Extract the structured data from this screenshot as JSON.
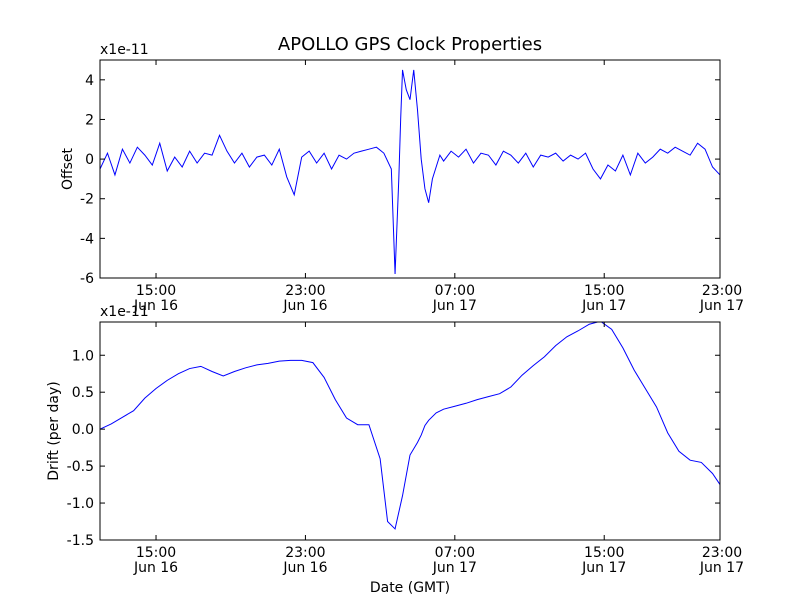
{
  "chart_data": [
    {
      "type": "line",
      "title": "APOLLO GPS Clock Properties",
      "xlabel": "",
      "ylabel": "Offset",
      "y_multiplier": "x1e-11",
      "ylim": [
        -6,
        5
      ],
      "yticks": [
        -6,
        -4,
        -2,
        0,
        2,
        4
      ],
      "ytick_labels": [
        "-6",
        "-4",
        "-2",
        "0",
        "2",
        "4"
      ],
      "xlim": [
        0,
        16.6
      ],
      "xticks": [
        {
          "x": 1.5,
          "time": "15:00",
          "date": "Jun 16"
        },
        {
          "x": 5.5,
          "time": "23:00",
          "date": "Jun 16"
        },
        {
          "x": 9.5,
          "time": "07:00",
          "date": "Jun 17"
        },
        {
          "x": 13.5,
          "time": "15:00",
          "date": "Jun 17"
        },
        {
          "x": 17.5,
          "time": "23:00",
          "date": "Jun 17"
        }
      ],
      "grid": false,
      "line_color": "#0000ff",
      "series": [
        {
          "x": [
            0,
            0.2,
            0.4,
            0.6,
            0.8,
            1.0,
            1.2,
            1.4,
            1.6,
            1.8,
            2.0,
            2.2,
            2.4,
            2.6,
            2.8,
            3.0,
            3.2,
            3.4,
            3.6,
            3.8,
            4.0,
            4.2,
            4.4,
            4.6,
            4.8,
            5.0,
            5.2,
            5.4,
            5.6,
            5.8,
            6.0,
            6.2,
            6.4,
            6.6,
            6.8,
            7.0,
            7.2,
            7.4,
            7.6,
            7.8,
            7.9,
            8.0,
            8.05,
            8.1,
            8.2,
            8.3,
            8.4,
            8.5,
            8.6,
            8.7,
            8.8,
            8.9,
            9.0,
            9.1,
            9.2,
            9.4,
            9.6,
            9.8,
            10.0,
            10.2,
            10.4,
            10.6,
            10.8,
            11.0,
            11.2,
            11.4,
            11.6,
            11.8,
            12.0,
            12.2,
            12.4,
            12.6,
            12.8,
            13.0,
            13.2,
            13.4,
            13.6,
            13.8,
            14.0,
            14.2,
            14.4,
            14.6,
            14.8,
            15.0,
            15.2,
            15.4,
            15.6,
            15.8,
            16.0,
            16.2,
            16.4,
            16.6
          ],
          "y": [
            -0.5,
            0.3,
            -0.8,
            0.5,
            -0.2,
            0.6,
            0.2,
            -0.3,
            0.8,
            -0.6,
            0.1,
            -0.4,
            0.4,
            -0.2,
            0.3,
            0.2,
            1.2,
            0.4,
            -0.2,
            0.3,
            -0.4,
            0.1,
            0.2,
            -0.3,
            0.5,
            -0.9,
            -1.8,
            0.1,
            0.4,
            -0.2,
            0.3,
            -0.5,
            0.2,
            0.0,
            0.3,
            0.4,
            0.5,
            0.6,
            0.3,
            -0.5,
            -5.8,
            -1.0,
            2.0,
            4.5,
            3.5,
            3.0,
            4.5,
            2.5,
            0.0,
            -1.5,
            -2.2,
            -1.0,
            -0.4,
            0.2,
            -0.1,
            0.4,
            0.1,
            0.5,
            -0.2,
            0.3,
            0.2,
            -0.3,
            0.4,
            0.2,
            -0.2,
            0.3,
            -0.4,
            0.2,
            0.1,
            0.3,
            -0.1,
            0.2,
            0.0,
            0.3,
            -0.5,
            -1.0,
            -0.3,
            -0.6,
            0.2,
            -0.8,
            0.3,
            -0.2,
            0.1,
            0.5,
            0.3,
            0.6,
            0.4,
            0.2,
            0.8,
            0.5,
            -0.4,
            -0.8
          ]
        }
      ]
    },
    {
      "type": "line",
      "title": "",
      "xlabel": "Date (GMT)",
      "ylabel": "Drift (per day)",
      "y_multiplier": "x1e-11",
      "ylim": [
        -1.5,
        1.45
      ],
      "yticks": [
        -1.5,
        -1.0,
        -0.5,
        0.0,
        0.5,
        1.0
      ],
      "ytick_labels": [
        "-1.5",
        "-1.0",
        "-0.5",
        "0.0",
        "0.5",
        "1.0"
      ],
      "xlim": [
        0,
        16.6
      ],
      "xticks": [
        {
          "x": 1.5,
          "time": "15:00",
          "date": "Jun 16"
        },
        {
          "x": 5.5,
          "time": "23:00",
          "date": "Jun 16"
        },
        {
          "x": 9.5,
          "time": "07:00",
          "date": "Jun 17"
        },
        {
          "x": 13.5,
          "time": "15:00",
          "date": "Jun 17"
        },
        {
          "x": 17.5,
          "time": "23:00",
          "date": "Jun 17"
        }
      ],
      "grid": false,
      "line_color": "#0000ff",
      "series": [
        {
          "x": [
            0,
            0.3,
            0.6,
            0.9,
            1.2,
            1.5,
            1.8,
            2.1,
            2.4,
            2.7,
            3.0,
            3.3,
            3.6,
            3.9,
            4.2,
            4.5,
            4.8,
            5.1,
            5.4,
            5.7,
            6.0,
            6.3,
            6.6,
            6.9,
            7.2,
            7.5,
            7.7,
            7.9,
            8.1,
            8.3,
            8.5,
            8.6,
            8.7,
            8.8,
            9.0,
            9.2,
            9.5,
            9.8,
            10.1,
            10.4,
            10.7,
            11.0,
            11.3,
            11.6,
            11.9,
            12.2,
            12.5,
            12.8,
            13.1,
            13.4,
            13.7,
            14.0,
            14.3,
            14.6,
            14.9,
            15.2,
            15.5,
            15.8,
            16.1,
            16.4,
            16.6
          ],
          "y": [
            0.0,
            0.07,
            0.16,
            0.25,
            0.42,
            0.55,
            0.66,
            0.75,
            0.82,
            0.85,
            0.78,
            0.72,
            0.78,
            0.83,
            0.87,
            0.89,
            0.92,
            0.93,
            0.93,
            0.9,
            0.7,
            0.4,
            0.15,
            0.06,
            0.06,
            -0.4,
            -1.25,
            -1.35,
            -0.9,
            -0.35,
            -0.18,
            -0.08,
            0.05,
            0.12,
            0.22,
            0.27,
            0.31,
            0.35,
            0.4,
            0.44,
            0.48,
            0.57,
            0.73,
            0.86,
            0.98,
            1.13,
            1.25,
            1.33,
            1.42,
            1.46,
            1.35,
            1.1,
            0.8,
            0.55,
            0.3,
            -0.05,
            -0.3,
            -0.42,
            -0.45,
            -0.6,
            -0.75
          ]
        }
      ]
    }
  ]
}
